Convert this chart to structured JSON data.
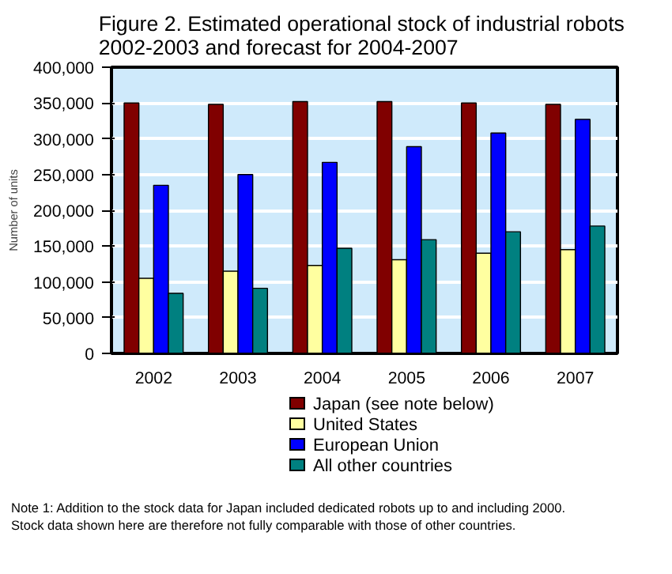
{
  "chart_data": {
    "type": "bar",
    "title": "Figure 2.  Estimated operational stock of industrial robots\n2002-2003 and forecast for 2004-2007",
    "ylabel": "Number of units",
    "categories": [
      "2002",
      "2003",
      "2004",
      "2005",
      "2006",
      "2007"
    ],
    "series": [
      {
        "name": "Japan (see note below)",
        "color": "#800000",
        "values": [
          350000,
          348000,
          352000,
          352000,
          350000,
          348000
        ]
      },
      {
        "name": "United States",
        "color": "#ffffa0",
        "values": [
          105000,
          115000,
          123000,
          131000,
          140000,
          145000
        ]
      },
      {
        "name": "European Union",
        "color": "#0000ff",
        "values": [
          235000,
          250000,
          267000,
          289000,
          308000,
          327000
        ]
      },
      {
        "name": "All other countries",
        "color": "#008080",
        "values": [
          84000,
          91000,
          147000,
          159000,
          170000,
          178000
        ]
      }
    ],
    "ylim": [
      0,
      400000
    ],
    "yticks": [
      {
        "value": 0,
        "label": "0"
      },
      {
        "value": 50000,
        "label": "50,000"
      },
      {
        "value": 100000,
        "label": "100,000"
      },
      {
        "value": 150000,
        "label": "150,000"
      },
      {
        "value": 200000,
        "label": "200,000"
      },
      {
        "value": 250000,
        "label": "250,000"
      },
      {
        "value": 300000,
        "label": "300,000"
      },
      {
        "value": 350000,
        "label": "350,000"
      },
      {
        "value": 400000,
        "label": "400,000"
      }
    ],
    "grid": "y",
    "legend": "bottom",
    "annotations": [
      "Note 1:  Addition to the stock data for Japan included dedicated robots up to and including 2000.",
      "Stock data shown here are therefore not fully comparable with those of other countries."
    ]
  }
}
